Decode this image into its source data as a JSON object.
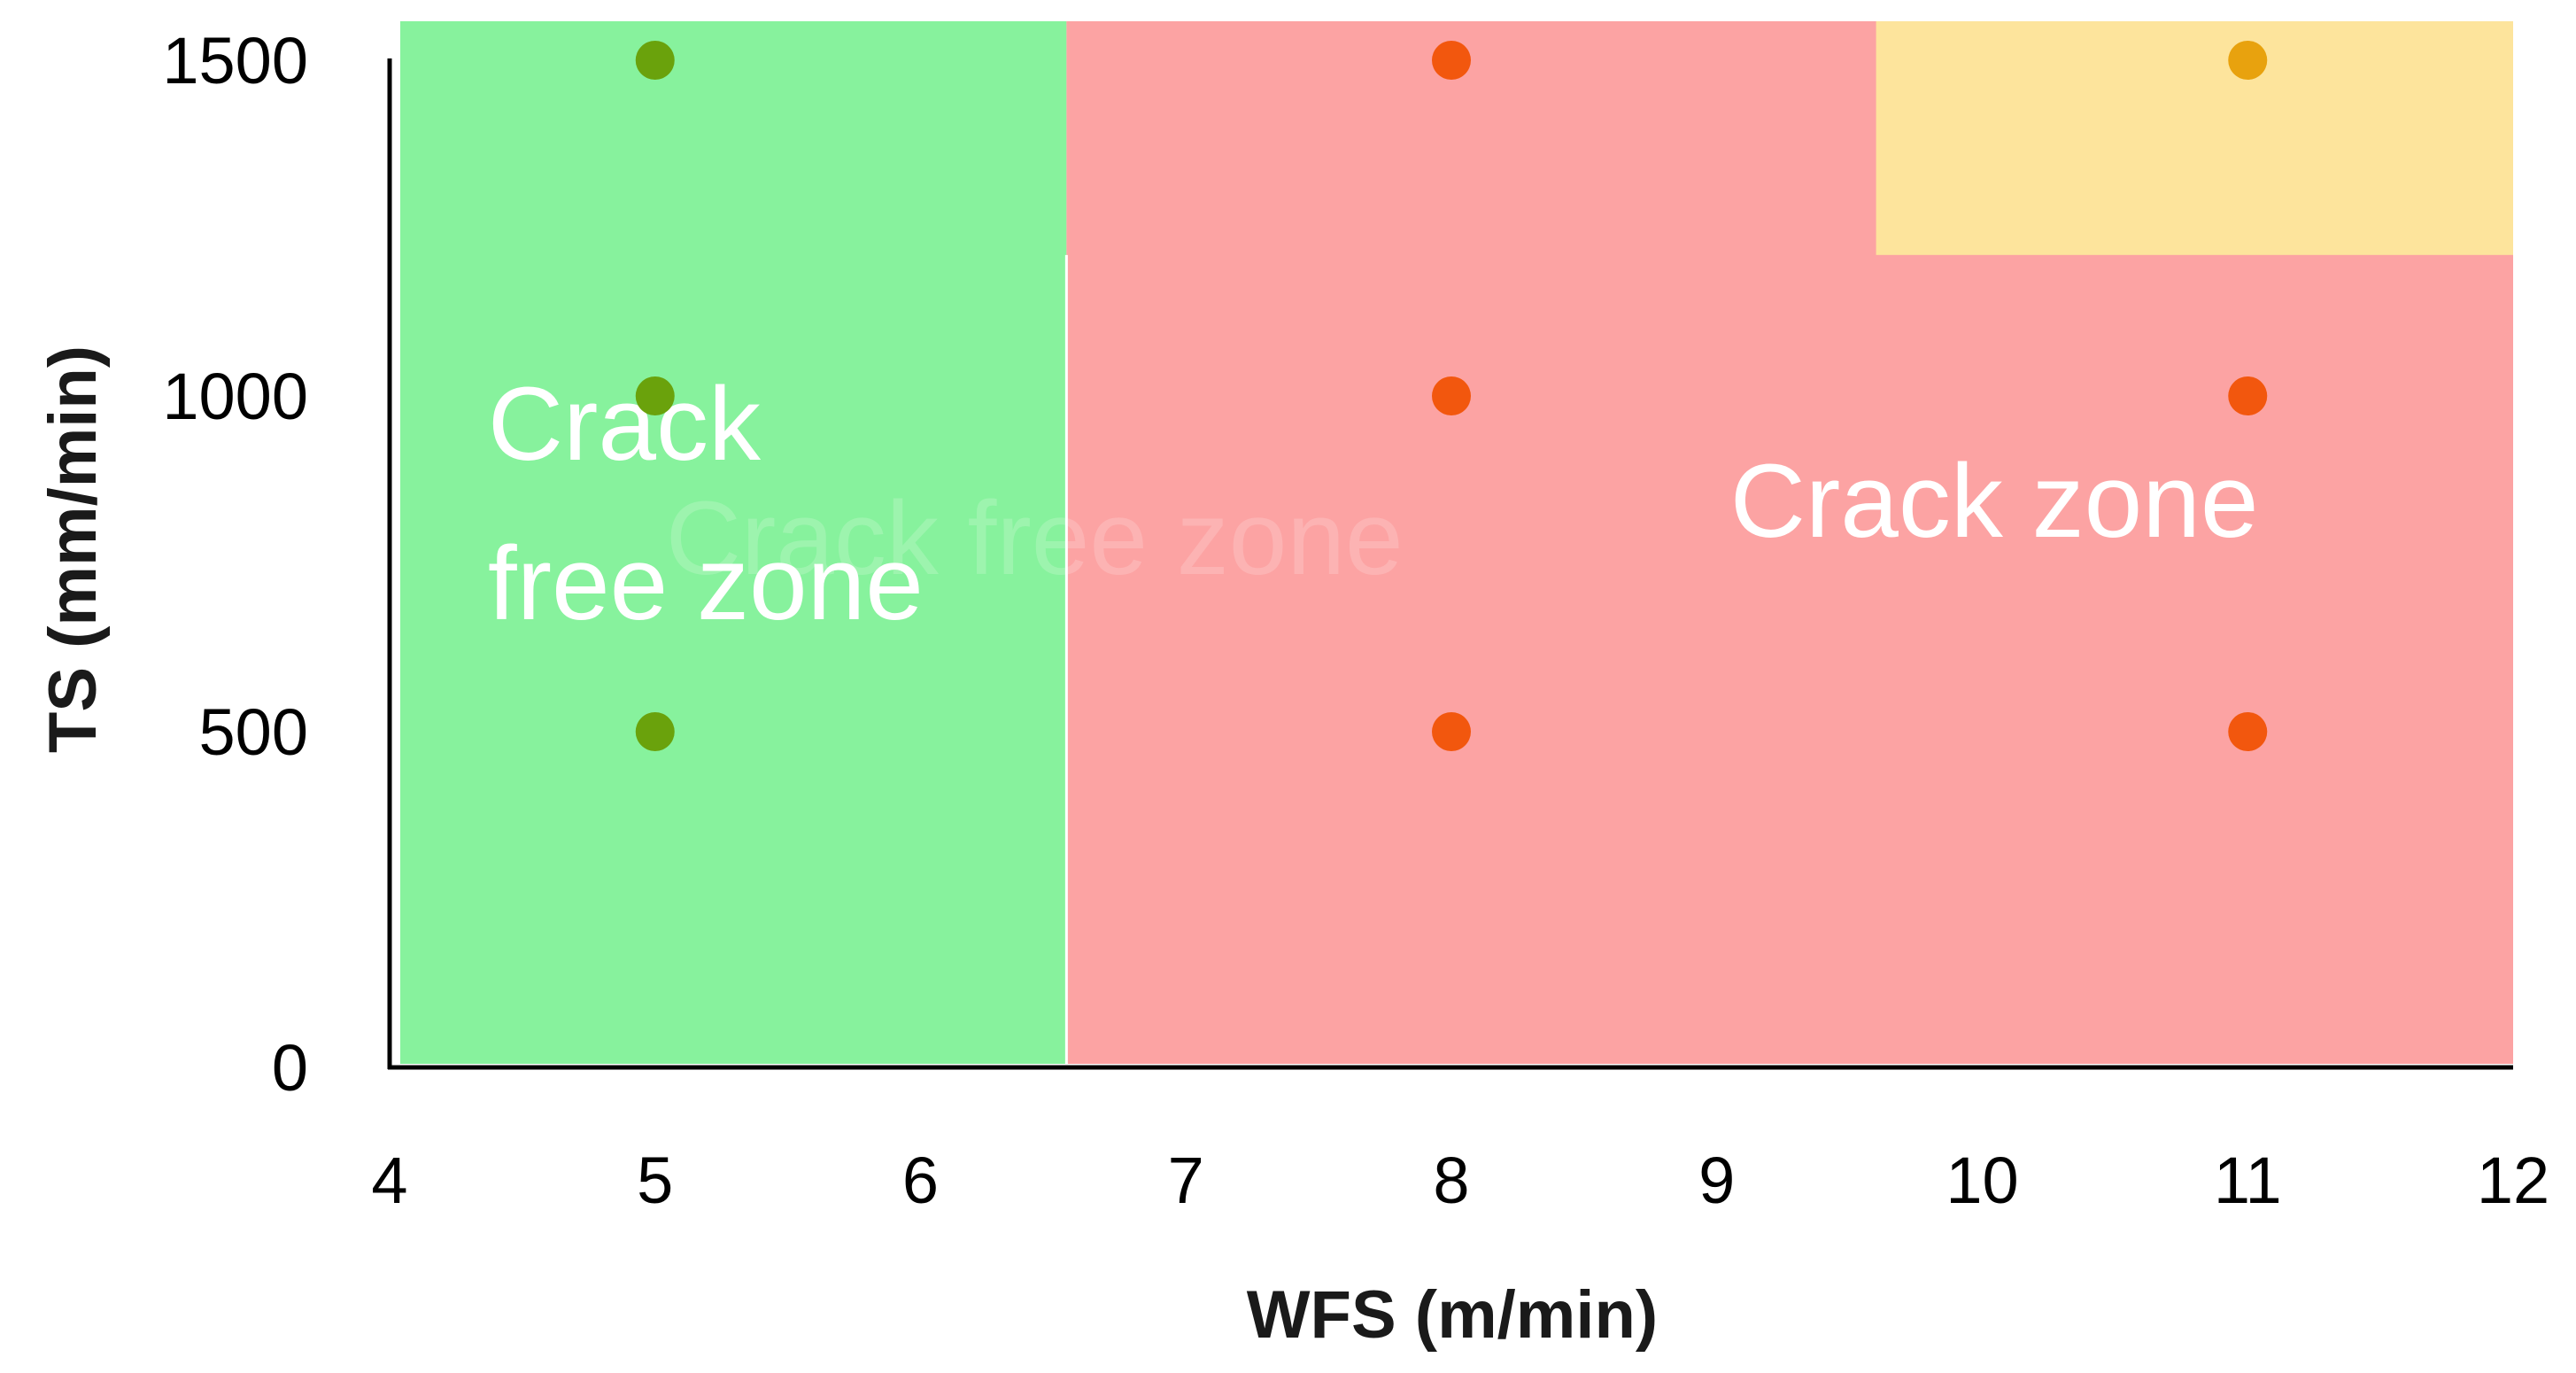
{
  "chart_data": {
    "type": "scatter",
    "title": "",
    "xlabel": "WFS (m/min)",
    "ylabel": "TS (mm/min)",
    "xlim": [
      4,
      12
    ],
    "ylim": [
      0,
      1500
    ],
    "x_ticks": [
      4,
      5,
      6,
      7,
      8,
      9,
      10,
      11,
      12
    ],
    "y_ticks": [
      0,
      500,
      1000,
      1500
    ],
    "grid": false,
    "legend": "none",
    "zones": [
      {
        "name": "crack-free-zone",
        "x_range": [
          4,
          6.55
        ],
        "y_range": [
          0,
          1500
        ],
        "color": "#87f29d"
      },
      {
        "name": "crack-zone",
        "x_range": [
          6.55,
          12
        ],
        "y_range": [
          0,
          1500
        ],
        "color": "#fca3a3"
      },
      {
        "name": "transition-zone",
        "x_range": [
          9.6,
          12
        ],
        "y_range": [
          1210,
          1500
        ],
        "color": "#fde49c"
      }
    ],
    "annotations": [
      {
        "name": "crack-free-zone-label",
        "lines": [
          "Crack",
          "free zone"
        ],
        "x": 4.37,
        "y": 905,
        "line_step": 245
      },
      {
        "name": "crack-zone-label",
        "lines": [
          "Crack zone"
        ],
        "x": 9.05,
        "y": 790,
        "line_step": 0
      }
    ],
    "watermark": {
      "text": "Crack free zone",
      "x": 5.04,
      "y": 735
    },
    "series": [
      {
        "name": "crack-free",
        "color": "#6aa20c",
        "points": [
          {
            "x": 5,
            "y": 1500
          },
          {
            "x": 5,
            "y": 1000
          },
          {
            "x": 5,
            "y": 500
          }
        ]
      },
      {
        "name": "crack",
        "color": "#f2570e",
        "points": [
          {
            "x": 8,
            "y": 1500
          },
          {
            "x": 8,
            "y": 1000
          },
          {
            "x": 8,
            "y": 500
          },
          {
            "x": 11,
            "y": 1000
          },
          {
            "x": 11,
            "y": 500
          }
        ]
      },
      {
        "name": "transition",
        "color": "#e8a20e",
        "points": [
          {
            "x": 11,
            "y": 1500
          }
        ]
      }
    ]
  }
}
